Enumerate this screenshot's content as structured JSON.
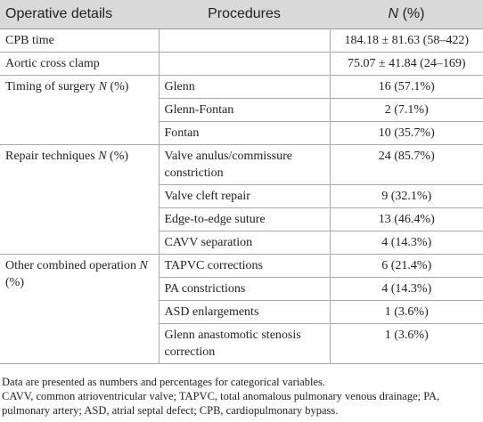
{
  "table": {
    "header": {
      "detail": "Operative details",
      "procedure": "Procedures",
      "value": {
        "italic": "N",
        "suffix": "(%)"
      }
    },
    "rows": [
      {
        "detail": {
          "text": "CPB time"
        },
        "value": "184.18 ± 81.63 (58–422)"
      },
      {
        "detail": {
          "text": "Aortic cross clamp"
        },
        "value": "75.07 ± 41.84 (24–169)"
      },
      {
        "detail": {
          "text": "Timing of surgery",
          "italic": "N",
          "suffix": "(%)"
        },
        "items": [
          {
            "procedure": "Glenn",
            "value": "16 (57.1%)"
          },
          {
            "procedure": "Glenn-Fontan",
            "value": "2 (7.1%)"
          },
          {
            "procedure": "Fontan",
            "value": "10 (35.7%)"
          }
        ]
      },
      {
        "detail": {
          "text": "Repair techniques",
          "italic": "N",
          "suffix": "(%)"
        },
        "items": [
          {
            "procedure": "Valve anulus/commissure constriction",
            "value": "24 (85.7%)"
          },
          {
            "procedure": "Valve cleft repair",
            "value": "9 (32.1%)"
          },
          {
            "procedure": "Edge-to-edge suture",
            "value": "13 (46.4%)"
          },
          {
            "procedure": "CAVV separation",
            "value": "4 (14.3%)"
          }
        ]
      },
      {
        "detail": {
          "text": "Other combined operation",
          "italic": "N",
          "suffix": "(%)"
        },
        "items": [
          {
            "procedure": "TAPVC corrections",
            "value": "6 (21.4%)"
          },
          {
            "procedure": "PA constrictions",
            "value": "4 (14.3%)"
          },
          {
            "procedure": "ASD enlargements",
            "value": "1 (3.6%)"
          },
          {
            "procedure": "Glenn anastomotic stenosis correction",
            "value": "1 (3.6%)"
          }
        ]
      }
    ],
    "notes": [
      "Data are presented as numbers and percentages for categorical variables.",
      "CAVV, common atrioventricular valve; TAPVC, total anomalous pulmonary venous drainage; PA, pulmonary artery; ASD, atrial septal defect; CPB, cardiopulmonary bypass."
    ]
  }
}
